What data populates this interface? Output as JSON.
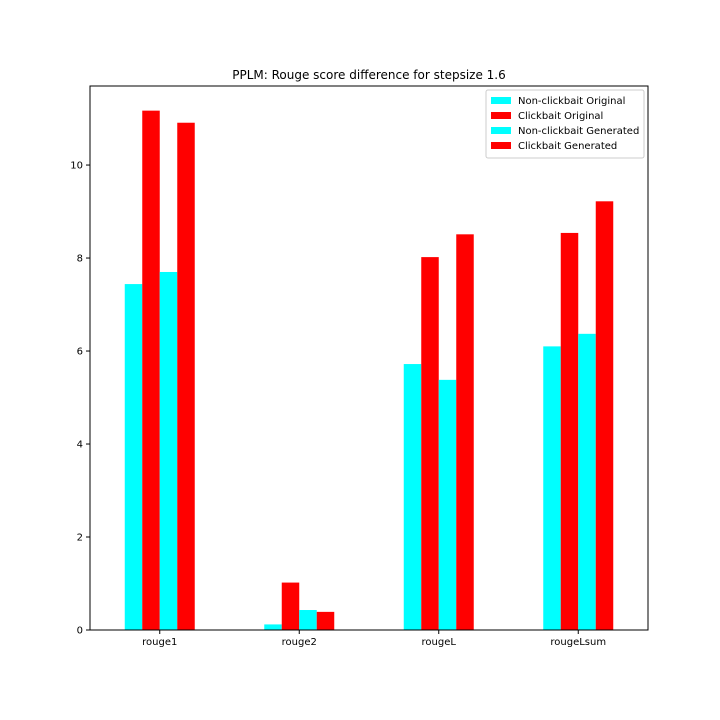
{
  "chart_data": {
    "type": "bar",
    "title": "PPLM: Rouge score difference for stepsize 1.6",
    "xlabel": "",
    "ylabel": "",
    "categories": [
      "rouge1",
      "rouge2",
      "rougeL",
      "rougeLsum"
    ],
    "ylim": [
      0,
      11.7
    ],
    "yticks": [
      0,
      2,
      4,
      6,
      8,
      10
    ],
    "grid": false,
    "legend_position": "top-right",
    "series": [
      {
        "name": "Non-clickbait Original",
        "color": "#00ffff",
        "values": [
          7.44,
          0.12,
          5.72,
          6.1
        ]
      },
      {
        "name": "Clickbait Original",
        "color": "#ff0000",
        "values": [
          11.17,
          1.02,
          8.02,
          8.54
        ]
      },
      {
        "name": "Non-clickbait Generated",
        "color": "#00ffff",
        "values": [
          7.7,
          0.43,
          5.38,
          6.37
        ]
      },
      {
        "name": "Clickbait Generated",
        "color": "#ff0000",
        "values": [
          10.91,
          0.39,
          8.51,
          9.22
        ]
      }
    ]
  }
}
